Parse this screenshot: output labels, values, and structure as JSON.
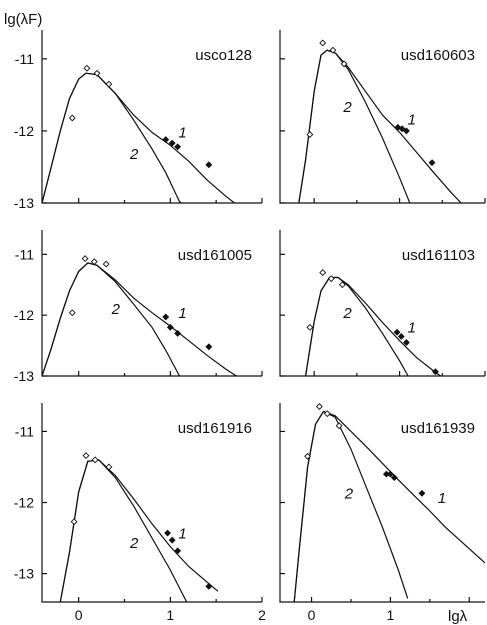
{
  "chart_data": [
    {
      "type": "scatter",
      "title": "usco128",
      "open_points": [
        [
          -0.07,
          -11.82
        ],
        [
          0.09,
          -11.13
        ],
        [
          0.2,
          -11.2
        ],
        [
          0.33,
          -11.35
        ]
      ],
      "filled_points": [
        [
          0.95,
          -12.12
        ],
        [
          1.02,
          -12.17
        ],
        [
          1.08,
          -12.22
        ],
        [
          1.42,
          -12.47
        ]
      ],
      "curves": [
        {
          "label": "1",
          "points": [
            [
              -0.4,
              -13
            ],
            [
              -0.3,
              -12.5
            ],
            [
              -0.2,
              -12.0
            ],
            [
              -0.1,
              -11.55
            ],
            [
              0.0,
              -11.28
            ],
            [
              0.08,
              -11.2
            ],
            [
              0.2,
              -11.22
            ],
            [
              0.4,
              -11.48
            ],
            [
              0.6,
              -11.78
            ],
            [
              0.8,
              -12.02
            ],
            [
              1.0,
              -12.2
            ],
            [
              1.2,
              -12.42
            ],
            [
              1.4,
              -12.68
            ],
            [
              1.6,
              -12.9
            ],
            [
              1.7,
              -13.0
            ]
          ]
        },
        {
          "label": "2",
          "points": [
            [
              -0.4,
              -13
            ],
            [
              -0.3,
              -12.5
            ],
            [
              -0.2,
              -12.0
            ],
            [
              -0.1,
              -11.55
            ],
            [
              0.0,
              -11.28
            ],
            [
              0.08,
              -11.2
            ],
            [
              0.2,
              -11.22
            ],
            [
              0.4,
              -11.48
            ],
            [
              0.6,
              -11.85
            ],
            [
              0.8,
              -12.25
            ],
            [
              0.95,
              -12.58
            ],
            [
              1.1,
              -12.98
            ],
            [
              1.12,
              -13.0
            ]
          ]
        }
      ]
    },
    {
      "type": "scatter",
      "title": "usd160603",
      "open_points": [
        [
          -0.05,
          -12.05
        ],
        [
          0.1,
          -10.78
        ],
        [
          0.22,
          -10.88
        ],
        [
          0.35,
          -11.07
        ]
      ],
      "filled_points": [
        [
          0.98,
          -11.95
        ],
        [
          1.03,
          -11.97
        ],
        [
          1.08,
          -12.0
        ],
        [
          1.38,
          -12.44
        ]
      ],
      "curves": [
        {
          "label": "1",
          "points": [
            [
              -0.18,
              -13
            ],
            [
              -0.1,
              -12.4
            ],
            [
              0.0,
              -11.45
            ],
            [
              0.08,
              -10.95
            ],
            [
              0.15,
              -10.88
            ],
            [
              0.25,
              -10.92
            ],
            [
              0.4,
              -11.12
            ],
            [
              0.6,
              -11.45
            ],
            [
              0.8,
              -11.78
            ],
            [
              1.0,
              -12.02
            ],
            [
              1.2,
              -12.3
            ],
            [
              1.4,
              -12.58
            ],
            [
              1.6,
              -12.85
            ],
            [
              1.72,
              -13.0
            ]
          ]
        },
        {
          "label": "2",
          "points": [
            [
              -0.18,
              -13
            ],
            [
              -0.1,
              -12.4
            ],
            [
              0.0,
              -11.45
            ],
            [
              0.08,
              -10.95
            ],
            [
              0.15,
              -10.88
            ],
            [
              0.25,
              -10.92
            ],
            [
              0.4,
              -11.15
            ],
            [
              0.6,
              -11.6
            ],
            [
              0.8,
              -12.1
            ],
            [
              1.0,
              -12.65
            ],
            [
              1.12,
              -13.0
            ]
          ]
        }
      ]
    },
    {
      "type": "scatter",
      "title": "usd161005",
      "open_points": [
        [
          -0.07,
          -11.96
        ],
        [
          0.07,
          -11.07
        ],
        [
          0.17,
          -11.12
        ],
        [
          0.3,
          -11.16
        ]
      ],
      "filled_points": [
        [
          0.95,
          -12.03
        ],
        [
          1.0,
          -12.2
        ],
        [
          1.08,
          -12.3
        ],
        [
          1.42,
          -12.52
        ]
      ],
      "curves": [
        {
          "label": "1",
          "points": [
            [
              -0.4,
              -13
            ],
            [
              -0.3,
              -12.55
            ],
            [
              -0.2,
              -12.05
            ],
            [
              -0.1,
              -11.6
            ],
            [
              0.0,
              -11.28
            ],
            [
              0.1,
              -11.14
            ],
            [
              0.2,
              -11.18
            ],
            [
              0.4,
              -11.42
            ],
            [
              0.6,
              -11.72
            ],
            [
              0.8,
              -11.96
            ],
            [
              1.0,
              -12.18
            ],
            [
              1.2,
              -12.42
            ],
            [
              1.4,
              -12.66
            ],
            [
              1.6,
              -12.88
            ],
            [
              1.72,
              -13.0
            ]
          ]
        },
        {
          "label": "2",
          "points": [
            [
              -0.4,
              -13
            ],
            [
              -0.3,
              -12.55
            ],
            [
              -0.2,
              -12.05
            ],
            [
              -0.1,
              -11.6
            ],
            [
              0.0,
              -11.28
            ],
            [
              0.1,
              -11.14
            ],
            [
              0.2,
              -11.18
            ],
            [
              0.4,
              -11.45
            ],
            [
              0.6,
              -11.82
            ],
            [
              0.8,
              -12.2
            ],
            [
              0.95,
              -12.58
            ],
            [
              1.1,
              -13.0
            ]
          ]
        }
      ]
    },
    {
      "type": "scatter",
      "title": "usd161103",
      "open_points": [
        [
          -0.05,
          -12.2
        ],
        [
          0.1,
          -11.3
        ],
        [
          0.2,
          -11.4
        ],
        [
          0.33,
          -11.5
        ]
      ],
      "filled_points": [
        [
          0.97,
          -12.28
        ],
        [
          1.02,
          -12.35
        ],
        [
          1.08,
          -12.45
        ],
        [
          1.42,
          -12.93
        ]
      ],
      "curves": [
        {
          "label": "1",
          "points": [
            [
              -0.1,
              -13
            ],
            [
              -0.05,
              -12.55
            ],
            [
              0.0,
              -12.1
            ],
            [
              0.08,
              -11.6
            ],
            [
              0.18,
              -11.38
            ],
            [
              0.28,
              -11.38
            ],
            [
              0.4,
              -11.5
            ],
            [
              0.6,
              -11.8
            ],
            [
              0.8,
              -12.12
            ],
            [
              1.0,
              -12.42
            ],
            [
              1.2,
              -12.7
            ],
            [
              1.4,
              -12.92
            ],
            [
              1.48,
              -13.0
            ]
          ]
        },
        {
          "label": "2",
          "points": [
            [
              -0.1,
              -13
            ],
            [
              -0.05,
              -12.55
            ],
            [
              0.0,
              -12.1
            ],
            [
              0.08,
              -11.6
            ],
            [
              0.18,
              -11.38
            ],
            [
              0.28,
              -11.38
            ],
            [
              0.4,
              -11.52
            ],
            [
              0.6,
              -11.88
            ],
            [
              0.8,
              -12.3
            ],
            [
              1.0,
              -12.75
            ],
            [
              1.1,
              -13.0
            ]
          ]
        }
      ]
    },
    {
      "type": "scatter",
      "title": "usd161916",
      "open_points": [
        [
          -0.05,
          -12.27
        ],
        [
          0.08,
          -11.34
        ],
        [
          0.18,
          -11.4
        ],
        [
          0.33,
          -11.5
        ]
      ],
      "filled_points": [
        [
          0.97,
          -12.43
        ],
        [
          1.02,
          -12.53
        ],
        [
          1.08,
          -12.68
        ],
        [
          1.42,
          -13.18
        ]
      ],
      "curves": [
        {
          "label": "1",
          "points": [
            [
              -0.2,
              -13.4
            ],
            [
              -0.1,
              -12.7
            ],
            [
              0.0,
              -11.85
            ],
            [
              0.1,
              -11.42
            ],
            [
              0.22,
              -11.4
            ],
            [
              0.4,
              -11.62
            ],
            [
              0.6,
              -11.95
            ],
            [
              0.8,
              -12.3
            ],
            [
              1.0,
              -12.62
            ],
            [
              1.2,
              -12.9
            ],
            [
              1.4,
              -13.12
            ],
            [
              1.52,
              -13.25
            ]
          ]
        },
        {
          "label": "2",
          "points": [
            [
              -0.2,
              -13.4
            ],
            [
              -0.1,
              -12.7
            ],
            [
              0.0,
              -11.85
            ],
            [
              0.1,
              -11.42
            ],
            [
              0.22,
              -11.4
            ],
            [
              0.4,
              -11.65
            ],
            [
              0.6,
              -12.05
            ],
            [
              0.8,
              -12.5
            ],
            [
              1.0,
              -12.95
            ],
            [
              1.15,
              -13.33
            ],
            [
              1.2,
              -13.45
            ]
          ]
        }
      ]
    },
    {
      "type": "scatter",
      "title": "usd161939",
      "open_points": [
        [
          -0.05,
          -11.35
        ],
        [
          0.1,
          -10.65
        ],
        [
          0.2,
          -10.75
        ],
        [
          0.35,
          -10.92
        ]
      ],
      "filled_points": [
        [
          0.95,
          -11.6
        ],
        [
          1.0,
          -11.6
        ],
        [
          1.05,
          -11.65
        ],
        [
          1.4,
          -11.87
        ]
      ],
      "curves": [
        {
          "label": "1",
          "points": [
            [
              -0.22,
              -13.4
            ],
            [
              -0.15,
              -12.6
            ],
            [
              -0.05,
              -11.5
            ],
            [
              0.05,
              -10.9
            ],
            [
              0.15,
              -10.72
            ],
            [
              0.3,
              -10.78
            ],
            [
              0.5,
              -11.0
            ],
            [
              0.7,
              -11.22
            ],
            [
              0.9,
              -11.45
            ],
            [
              1.1,
              -11.68
            ],
            [
              1.3,
              -11.9
            ],
            [
              1.5,
              -12.12
            ],
            [
              1.7,
              -12.35
            ],
            [
              1.9,
              -12.55
            ],
            [
              2.1,
              -12.75
            ],
            [
              2.2,
              -12.85
            ]
          ]
        },
        {
          "label": "2",
          "points": [
            [
              -0.22,
              -13.4
            ],
            [
              -0.15,
              -12.6
            ],
            [
              -0.05,
              -11.5
            ],
            [
              0.05,
              -10.9
            ],
            [
              0.15,
              -10.72
            ],
            [
              0.3,
              -10.8
            ],
            [
              0.5,
              -11.25
            ],
            [
              0.7,
              -11.8
            ],
            [
              0.9,
              -12.35
            ],
            [
              1.1,
              -12.95
            ],
            [
              1.22,
              -13.35
            ]
          ]
        }
      ]
    }
  ],
  "axes": {
    "ylabel": "lg(λF)",
    "xlabel": "lgλ",
    "xlim": [
      -0.4,
      2.0
    ],
    "ylim": [
      -13.0,
      -10.6
    ],
    "xlim_bottom_left": [
      -0.4,
      2.0
    ],
    "ylim_bottom": [
      -13.4,
      -10.6
    ],
    "xlim_bottom_right": [
      -0.4,
      2.2
    ],
    "y_ticks": [
      -13,
      -12,
      -11
    ],
    "x_ticks": [
      0,
      1,
      2
    ],
    "y_tick_labels": [
      "-13",
      "-12",
      "-11"
    ],
    "x_tick_labels_left": [
      "0",
      "1",
      "2"
    ],
    "x_tick_labels_right": [
      "0",
      "1"
    ]
  }
}
